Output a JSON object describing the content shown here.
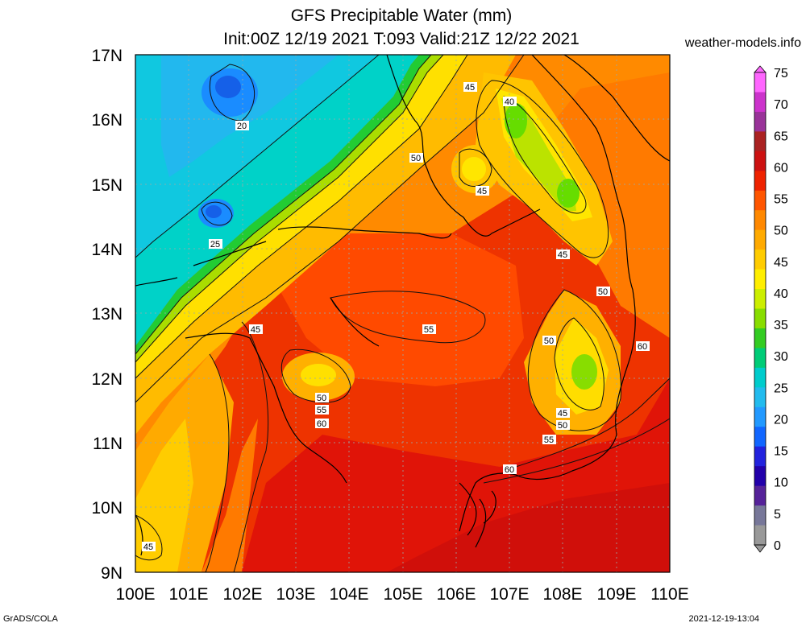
{
  "title": {
    "line1": "GFS Precipitable Water (mm)",
    "line2": "Init:00Z 12/19 2021 T:093 Valid:21Z 12/22 2021"
  },
  "site": "weather-models.info",
  "footer": {
    "left": "GrADS/COLA",
    "right": "2021-12-19-13:04"
  },
  "axes": {
    "lat_labels": [
      "17N",
      "16N",
      "15N",
      "14N",
      "13N",
      "12N",
      "11N",
      "10N",
      "9N"
    ],
    "lon_labels": [
      "100E",
      "101E",
      "102E",
      "103E",
      "104E",
      "105E",
      "106E",
      "107E",
      "108E",
      "109E",
      "110E"
    ]
  },
  "colorbar": {
    "labels": [
      "75",
      "70",
      "65",
      "60",
      "55",
      "50",
      "45",
      "40",
      "35",
      "30",
      "25",
      "20",
      "15",
      "10",
      "5",
      "0"
    ],
    "colors": [
      "#ff66ff",
      "#cc33cc",
      "#993399",
      "#aa2222",
      "#cc1111",
      "#ee2200",
      "#ff5500",
      "#ff8800",
      "#ffaa00",
      "#ffcc00",
      "#ffee00",
      "#ccee00",
      "#88dd00",
      "#33cc22",
      "#00cc77",
      "#00cccc",
      "#22bbee",
      "#2299ff",
      "#1166ff",
      "#2222dd",
      "#2200aa",
      "#552299",
      "#777799",
      "#999999"
    ]
  },
  "contour_labels": [
    {
      "text": "20"
    },
    {
      "text": "25"
    },
    {
      "text": "45"
    },
    {
      "text": "40"
    },
    {
      "text": "50"
    },
    {
      "text": "45"
    },
    {
      "text": "45"
    },
    {
      "text": "50"
    },
    {
      "text": "55"
    },
    {
      "text": "45"
    },
    {
      "text": "50"
    },
    {
      "text": "60"
    },
    {
      "text": "50"
    },
    {
      "text": "55"
    },
    {
      "text": "60"
    },
    {
      "text": "45"
    },
    {
      "text": "50"
    },
    {
      "text": "55"
    },
    {
      "text": "60"
    },
    {
      "text": "45"
    }
  ]
}
